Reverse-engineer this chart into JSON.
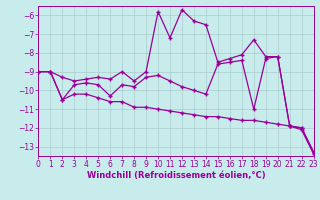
{
  "xlabel": "Windchill (Refroidissement éolien,°C)",
  "bg_color": "#c8ecec",
  "line_color": "#990099",
  "grid_color": "#aacccc",
  "xlim": [
    0,
    23
  ],
  "ylim": [
    -13.5,
    -5.5
  ],
  "yticks": [
    -13,
    -12,
    -11,
    -10,
    -9,
    -8,
    -7,
    -6
  ],
  "xticks": [
    0,
    1,
    2,
    3,
    4,
    5,
    6,
    7,
    8,
    9,
    10,
    11,
    12,
    13,
    14,
    15,
    16,
    17,
    18,
    19,
    20,
    21,
    22,
    23
  ],
  "line1_x": [
    0,
    1,
    2,
    3,
    4,
    5,
    6,
    7,
    8,
    9,
    10,
    11,
    12,
    13,
    14,
    15,
    16,
    17,
    18,
    19,
    20,
    21,
    22,
    23
  ],
  "line1_y": [
    -9.0,
    -9.0,
    -9.3,
    -9.5,
    -9.4,
    -9.3,
    -9.4,
    -9.0,
    -9.5,
    -9.0,
    -5.8,
    -7.2,
    -5.7,
    -6.3,
    -6.5,
    -8.5,
    -8.3,
    -8.1,
    -7.3,
    -8.2,
    -8.2,
    -11.9,
    -12.0,
    -13.3
  ],
  "line2_x": [
    0,
    1,
    2,
    3,
    4,
    5,
    6,
    7,
    8,
    9,
    10,
    11,
    12,
    13,
    14,
    15,
    16,
    17,
    18,
    19,
    20,
    21,
    22,
    23
  ],
  "line2_y": [
    -9.0,
    -9.0,
    -10.5,
    -9.7,
    -9.6,
    -9.7,
    -10.3,
    -9.7,
    -9.8,
    -9.3,
    -9.2,
    -9.5,
    -9.8,
    -10.0,
    -10.2,
    -8.6,
    -8.5,
    -8.4,
    -11.0,
    -8.3,
    -8.2,
    -11.9,
    -12.0,
    -13.3
  ],
  "line3_x": [
    0,
    1,
    2,
    3,
    4,
    5,
    6,
    7,
    8,
    9,
    10,
    11,
    12,
    13,
    14,
    15,
    16,
    17,
    18,
    19,
    20,
    21,
    22,
    23
  ],
  "line3_y": [
    -9.0,
    -9.0,
    -10.5,
    -10.2,
    -10.2,
    -10.4,
    -10.6,
    -10.6,
    -10.9,
    -10.9,
    -11.0,
    -11.1,
    -11.2,
    -11.3,
    -11.4,
    -11.4,
    -11.5,
    -11.6,
    -11.6,
    -11.7,
    -11.8,
    -11.9,
    -12.1,
    -13.4
  ]
}
